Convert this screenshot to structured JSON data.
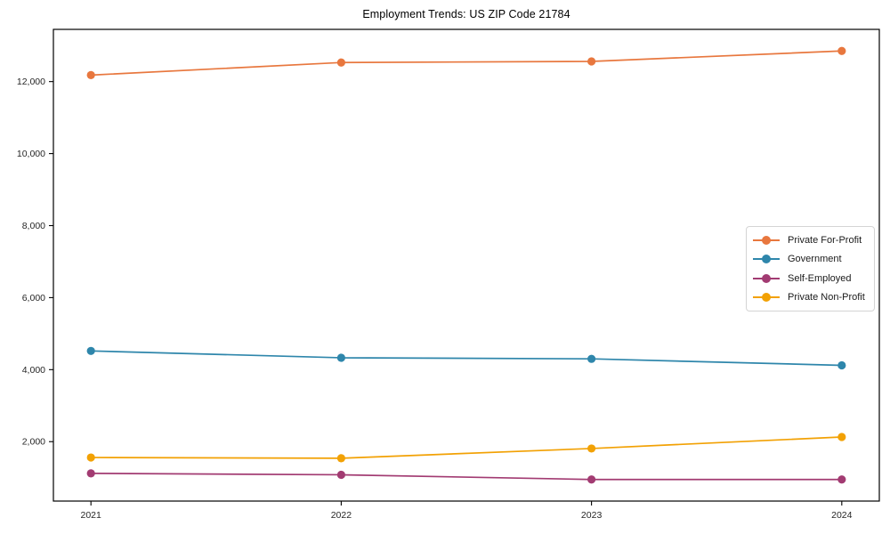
{
  "chart_data": {
    "type": "line",
    "title": "Employment Trends: US ZIP Code 21784",
    "xlabel": "",
    "ylabel": "",
    "x": [
      2021,
      2022,
      2023,
      2024
    ],
    "x_tick_labels": [
      "2021",
      "2022",
      "2023",
      "2024"
    ],
    "y_ticks": [
      2000,
      4000,
      6000,
      8000,
      10000,
      12000
    ],
    "y_tick_labels": [
      "2,000",
      "4,000",
      "6,000",
      "8,000",
      "10,000",
      "12,000"
    ],
    "xlim": [
      2020.85,
      2024.15
    ],
    "ylim": [
      350,
      13450
    ],
    "grid": false,
    "legend_position": "center right",
    "marker": "circle",
    "axis_color": "#000000",
    "tick_label_color": "#262626",
    "series": [
      {
        "name": "Private For-Profit",
        "color": "#E8773E",
        "values": [
          12180,
          12530,
          12560,
          12850
        ]
      },
      {
        "name": "Government",
        "color": "#2E86AB",
        "values": [
          4520,
          4330,
          4300,
          4120
        ]
      },
      {
        "name": "Self-Employed",
        "color": "#A23B72",
        "values": [
          1120,
          1080,
          950,
          950
        ]
      },
      {
        "name": "Private Non-Profit",
        "color": "#F2A104",
        "values": [
          1560,
          1540,
          1810,
          2130
        ]
      }
    ]
  }
}
